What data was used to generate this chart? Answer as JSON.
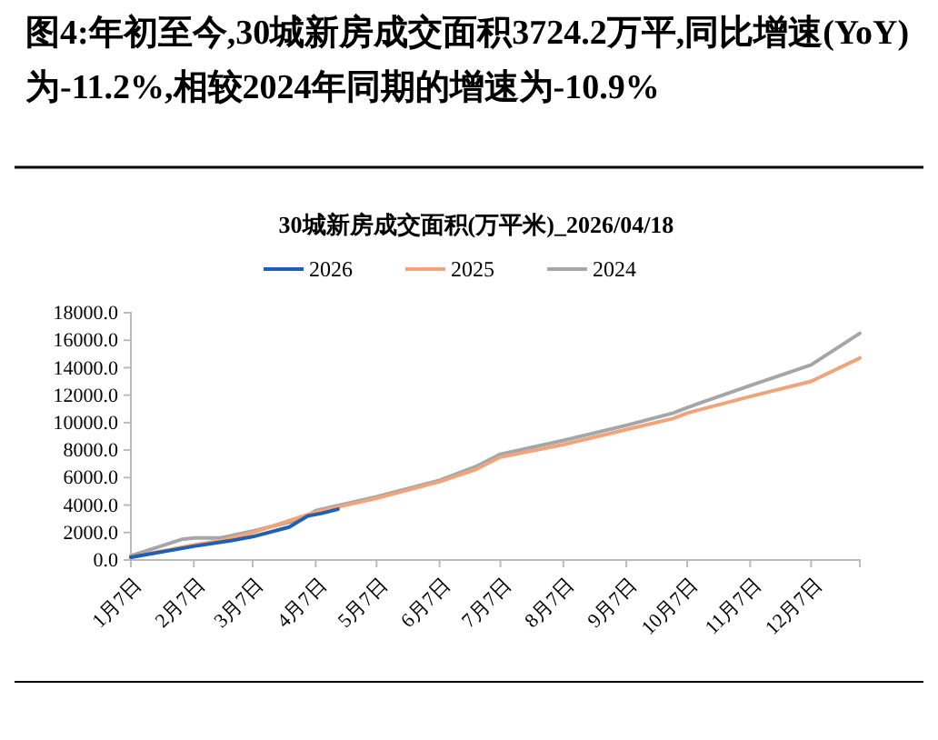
{
  "chart_data": {
    "type": "line",
    "title": "图4:年初至今,30城新房成交面积3724.2万平,同比增速(YoY)为-11.2%,相较2024年同期的增速为-10.9%",
    "subtitle": "30城新房成交面积(万平米)_2026/04/18",
    "legend": "top",
    "grid": false,
    "line_style": "solid",
    "marker": "none",
    "xlim": [
      "--01-07",
      "--12-31"
    ],
    "xticks": [
      {
        "value": "--01-07",
        "label": "1月7日"
      },
      {
        "value": "--02-07",
        "label": "2月7日"
      },
      {
        "value": "--03-07",
        "label": "3月7日"
      },
      {
        "value": "--04-07",
        "label": "4月7日"
      },
      {
        "value": "--05-07",
        "label": "5月7日"
      },
      {
        "value": "--06-07",
        "label": "6月7日"
      },
      {
        "value": "--07-07",
        "label": "7月7日"
      },
      {
        "value": "--08-07",
        "label": "8月7日"
      },
      {
        "value": "--09-07",
        "label": "9月7日"
      },
      {
        "value": "--10-07",
        "label": "10月7日"
      },
      {
        "value": "--11-07",
        "label": "11月7日"
      },
      {
        "value": "--12-07",
        "label": "12月7日"
      }
    ],
    "ylim": [
      0,
      18000
    ],
    "yticks": [
      {
        "value": 0,
        "label": "0.0"
      },
      {
        "value": 2000,
        "label": "2000.0"
      },
      {
        "value": 4000,
        "label": "4000.0"
      },
      {
        "value": 6000,
        "label": "6000.0"
      },
      {
        "value": 8000,
        "label": "8000.0"
      },
      {
        "value": 10000,
        "label": "10000.0"
      },
      {
        "value": 12000,
        "label": "12000.0"
      },
      {
        "value": 14000,
        "label": "14000.0"
      },
      {
        "value": 16000,
        "label": "16000.0"
      },
      {
        "value": 18000,
        "label": "18000.0"
      }
    ],
    "series": [
      {
        "name": "2026",
        "color": "#1f5fb4",
        "x": [
          "--01-07",
          "--02-07",
          "--02-25",
          "--03-07",
          "--03-25",
          "--04-03",
          "--04-10",
          "--04-18"
        ],
        "values": [
          200,
          1000,
          1400,
          1700,
          2400,
          3200,
          3400,
          3700
        ]
      },
      {
        "name": "2025",
        "color": "#f0a47a",
        "x": [
          "--01-07",
          "--02-07",
          "--02-20",
          "--03-07",
          "--04-07",
          "--05-07",
          "--06-07",
          "--06-25",
          "--07-07",
          "--08-07",
          "--09-07",
          "--09-30",
          "--10-07",
          "--11-07",
          "--12-07",
          "--12-31"
        ],
        "values": [
          200,
          1100,
          1400,
          2000,
          3500,
          4500,
          5700,
          6600,
          7500,
          8400,
          9500,
          10300,
          10700,
          11900,
          13000,
          14700
        ]
      },
      {
        "name": "2024",
        "color": "#a6a6a6",
        "x": [
          "--01-07",
          "--02-01",
          "--02-07",
          "--02-20",
          "--03-07",
          "--04-01",
          "--04-07",
          "--05-07",
          "--06-07",
          "--06-25",
          "--07-07",
          "--08-07",
          "--09-07",
          "--09-30",
          "--10-07",
          "--11-07",
          "--12-07",
          "--12-31"
        ],
        "values": [
          300,
          1500,
          1600,
          1600,
          2100,
          3000,
          3600,
          4600,
          5800,
          6800,
          7700,
          8700,
          9800,
          10700,
          11100,
          12700,
          14200,
          16500
        ]
      }
    ]
  }
}
